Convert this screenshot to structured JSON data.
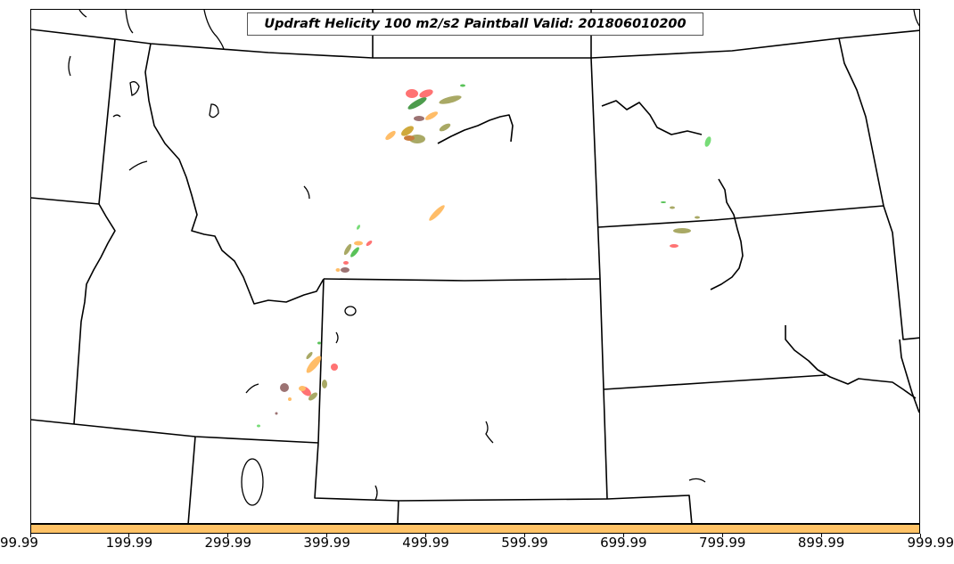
{
  "title": "Updraft Helicity 100 m2/s2 Paintball Valid: 201806010200",
  "colors": {
    "colorbar_fill": "#ffc266",
    "ensemble": [
      "#ff5a5a",
      "#3cb83c",
      "#ffb24d",
      "#9a9a4a",
      "#8b5a5a",
      "#c79a1a",
      "#5fd65f",
      "#2e8b2e"
    ]
  },
  "colorbar": {
    "tick_labels": [
      "99.99",
      "199.99",
      "299.99",
      "399.99",
      "499.99",
      "599.99",
      "699.99",
      "799.99",
      "899.99",
      "999.99"
    ]
  }
}
